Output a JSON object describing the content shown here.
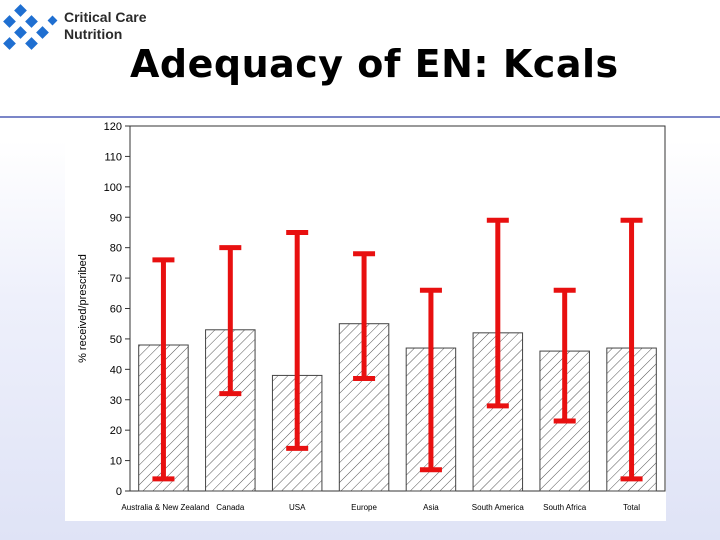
{
  "header": {
    "brand_line1": "Critical Care",
    "brand_line2": "Nutrition",
    "title": "Adequacy of EN: Kcals",
    "rule_color": "#7b86c8"
  },
  "icons": {
    "logo": "critical-care-nutrition-logo"
  },
  "chart_data": {
    "type": "bar",
    "title": "",
    "xlabel": "",
    "ylabel": "% received/prescribed",
    "ylim": [
      0,
      120
    ],
    "yticks": [
      0,
      10,
      20,
      30,
      40,
      50,
      60,
      70,
      80,
      90,
      100,
      110,
      120
    ],
    "grid": false,
    "categories": [
      "Australia & New Zealand",
      "Canada",
      "USA",
      "Europe",
      "Asia",
      "South America",
      "South Africa",
      "Total"
    ],
    "values": [
      48,
      53,
      38,
      55,
      47,
      52,
      46,
      47
    ],
    "error_low": [
      4,
      32,
      14,
      37,
      7,
      28,
      23,
      4
    ],
    "error_high": [
      76,
      80,
      85,
      78,
      66,
      89,
      66,
      89
    ],
    "bar_fill": "hatched",
    "error_bar_color": "#e81010"
  }
}
